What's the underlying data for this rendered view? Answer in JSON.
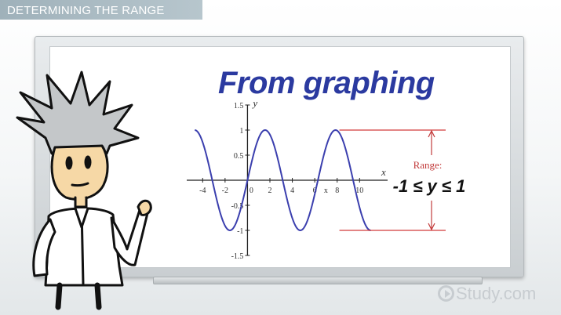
{
  "lesson": {
    "title": "DETERMINING THE RANGE",
    "heading": "From graphing"
  },
  "chart_data": {
    "type": "line",
    "title": "",
    "xlabel": "x",
    "ylabel": "y",
    "xlim": [
      -5,
      12.5
    ],
    "ylim": [
      -1.5,
      1.5
    ],
    "x_ticks": [
      {
        "value": -4,
        "label": "-4"
      },
      {
        "value": -2,
        "label": "-2"
      },
      {
        "value": 0,
        "label": "0"
      },
      {
        "value": 2,
        "label": "2"
      },
      {
        "value": 4,
        "label": "4"
      },
      {
        "value": 6,
        "label": "6"
      },
      {
        "value": 8,
        "label": "8"
      },
      {
        "value": 10,
        "label": "10"
      }
    ],
    "y_ticks": [
      {
        "value": 1.5,
        "label": "1.5"
      },
      {
        "value": 1,
        "label": "1"
      },
      {
        "value": 0.5,
        "label": "0.5"
      },
      {
        "value": -0.5,
        "label": "-0.5"
      },
      {
        "value": -1,
        "label": "-1"
      },
      {
        "value": -1.5,
        "label": "-1.5"
      }
    ],
    "x_axis_marker": "x",
    "series": [
      {
        "function": "sin(x)",
        "x_range": [
          -4.7,
          10.99
        ],
        "color": "#3b3fae"
      }
    ],
    "reference_lines": [
      {
        "y": 1,
        "color": "#d23a3a"
      },
      {
        "y": -1,
        "color": "#d23a3a"
      }
    ],
    "annotation": {
      "label": "Range:",
      "inequality": "-1 ≤ y ≤ 1",
      "color": "#c23b3b"
    }
  },
  "brand": {
    "logo_text": "Study.com"
  },
  "colors": {
    "title_bar": "#9fb1ba",
    "heading": "#2b3aa0",
    "curve": "#3b3fae",
    "range_lines": "#d23a3a"
  }
}
